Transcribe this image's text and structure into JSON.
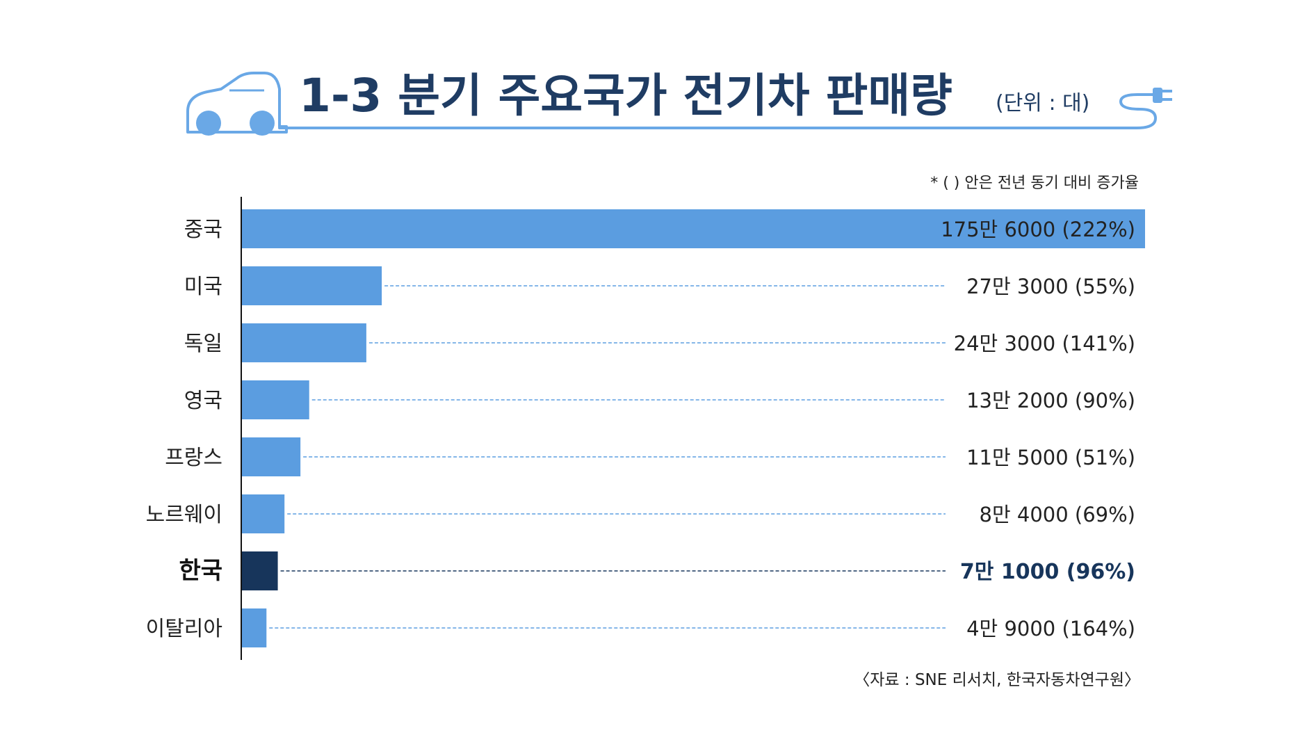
{
  "title": {
    "main": "1-3 분기 주요국가 전기차 판매량",
    "unit": "(단위 : 대)"
  },
  "note": "* ( ) 안은 전년 동기 대비 증가율",
  "source": "〈자료 : SNE 리서치, 한국자동차연구원〉",
  "colors": {
    "title": "#1f3c63",
    "bar": "#5b9de0",
    "highlight": "#17355b",
    "label": "#222222",
    "dash": "#5b9de0",
    "icon": "#6aa8e6",
    "axis": "#111111"
  },
  "icons": [
    "car-icon",
    "plug-icon"
  ],
  "chart_data": {
    "type": "bar",
    "orientation": "horizontal",
    "highlight_category": "한국",
    "categories": [
      "중국",
      "미국",
      "독일",
      "영국",
      "프랑스",
      "노르웨이",
      "한국",
      "이탈리아"
    ],
    "values": [
      1756000,
      273000,
      243000,
      132000,
      115000,
      84000,
      71000,
      49000
    ],
    "growth_pct": [
      222,
      55,
      141,
      90,
      51,
      69,
      96,
      164
    ],
    "value_labels": [
      "175만 6000 (222%)",
      "27만 3000 (55%)",
      "24만 3000 (141%)",
      "13만 2000 (90%)",
      "11만 5000 (51%)",
      "8만 4000 (69%)",
      "7만 1000 (96%)",
      "4만 9000 (164%)"
    ],
    "xlim": [
      0,
      1756000
    ],
    "grid": false,
    "legend": "none"
  }
}
